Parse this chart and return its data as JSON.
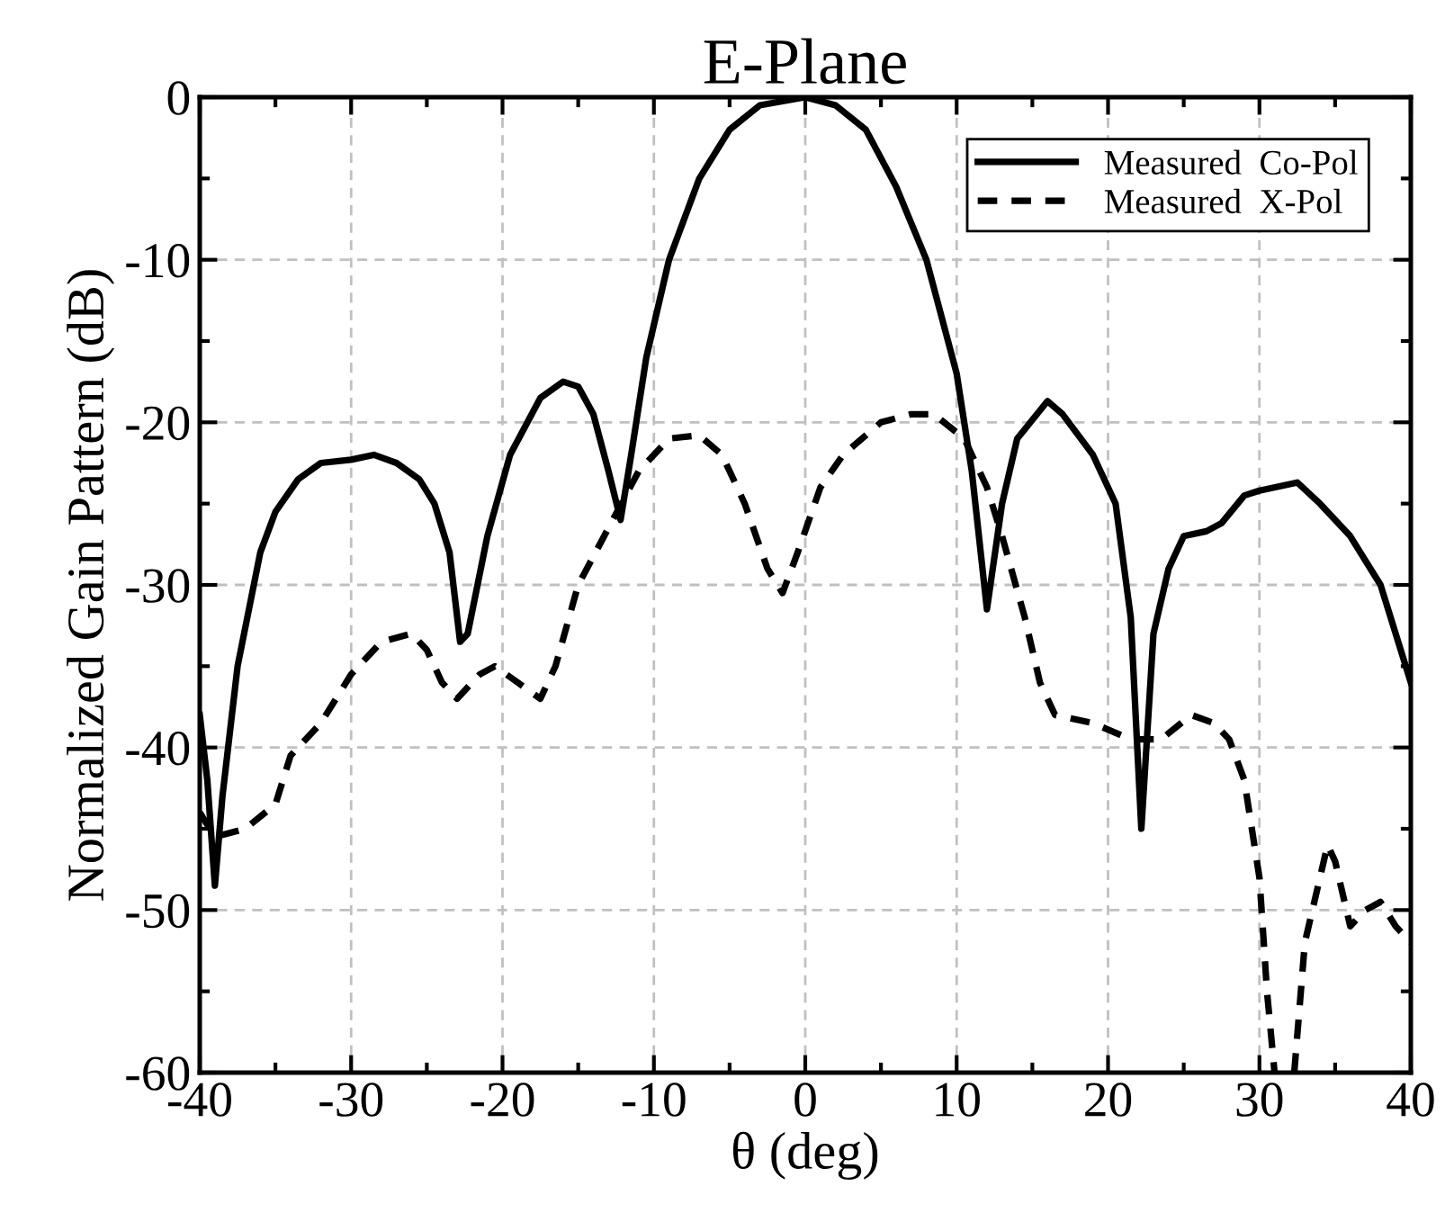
{
  "chart_data": {
    "type": "line",
    "title": "E-Plane",
    "xlabel": "θ (deg)",
    "ylabel": "Normalized Gain Pattern (dB)",
    "xlim": [
      -40,
      40
    ],
    "ylim": [
      -60,
      0
    ],
    "xticks": [
      -40,
      {
        "value": -35,
        "label": null
      },
      -30,
      {
        "value": -25,
        "label": null
      },
      -20,
      {
        "value": -15,
        "label": null
      },
      -10,
      {
        "value": -5,
        "label": null
      },
      0,
      {
        "value": 5,
        "label": null
      },
      10,
      {
        "value": 15,
        "label": null
      },
      20,
      {
        "value": 25,
        "label": null
      },
      30,
      {
        "value": 35,
        "label": null
      },
      40
    ],
    "yticks": [
      -60,
      {
        "value": -55,
        "label": null
      },
      -50,
      {
        "value": -45,
        "label": null
      },
      -40,
      {
        "value": -35,
        "label": null
      },
      -30,
      {
        "value": -25,
        "label": null
      },
      -20,
      {
        "value": -15,
        "label": null
      },
      -10,
      {
        "value": -5,
        "label": null
      },
      0
    ],
    "grid": true,
    "legend": "top right",
    "series": [
      {
        "name": "Measured  Co-Pol",
        "color": "#000000",
        "line_style": "solid",
        "x": [
          -40,
          -39.5,
          -39,
          -38.5,
          -37.5,
          -36,
          -35,
          -33.5,
          -32,
          -30,
          -28.5,
          -27,
          -25.5,
          -24.5,
          -23.5,
          -22.8,
          -22.3,
          -21,
          -19.5,
          -17.5,
          -16,
          -15,
          -14,
          -13,
          -12.2,
          -11.5,
          -10.5,
          -9,
          -7,
          -5,
          -3,
          0,
          2,
          4,
          6,
          8,
          10,
          11,
          12,
          13,
          14,
          16,
          17,
          19,
          20.5,
          21.5,
          22.2,
          23,
          24,
          25,
          26.5,
          27.5,
          29,
          30,
          32.5,
          34,
          36,
          38,
          40
        ],
        "values": [
          -38,
          -42,
          -48.5,
          -43,
          -35,
          -28,
          -25.5,
          -23.5,
          -22.5,
          -22.3,
          -22,
          -22.5,
          -23.5,
          -25,
          -28,
          -33.5,
          -33,
          -27,
          -22,
          -18.5,
          -17.5,
          -17.8,
          -19.5,
          -23,
          -26,
          -22,
          -16,
          -10,
          -5,
          -2,
          -0.5,
          0,
          -0.5,
          -2,
          -5.5,
          -10,
          -17,
          -23,
          -31.5,
          -25,
          -21,
          -18.7,
          -19.5,
          -22,
          -25,
          -32,
          -45,
          -33,
          -29,
          -27,
          -26.7,
          -26.2,
          -24.5,
          -24.2,
          -23.7,
          -25,
          -27,
          -30,
          -36
        ]
      },
      {
        "name": "Measured  X-Pol",
        "color": "#000000",
        "line_style": "dashed",
        "x": [
          -40,
          -39,
          -37,
          -35,
          -34,
          -32,
          -30,
          -28,
          -26,
          -25,
          -24,
          -23,
          -21.5,
          -20.5,
          -19,
          -17.5,
          -16.5,
          -15,
          -13,
          -11,
          -9,
          -7,
          -5.5,
          -4,
          -2.5,
          -1.5,
          -0.5,
          1,
          2.5,
          5,
          7,
          8.5,
          10.5,
          12,
          13,
          14.5,
          15.5,
          16.5,
          19,
          21.5,
          23.5,
          25.5,
          27,
          28,
          29,
          30,
          30.5,
          31,
          31.6,
          32.3,
          33,
          34.5,
          35,
          36,
          37,
          38,
          39,
          40
        ],
        "values": [
          -44,
          -45.5,
          -45,
          -43.5,
          -40.5,
          -38.5,
          -35.5,
          -33.5,
          -33,
          -34,
          -36,
          -37,
          -35.5,
          -35,
          -36,
          -37,
          -35,
          -30,
          -26.5,
          -23,
          -21,
          -20.8,
          -22,
          -25,
          -29,
          -30.5,
          -28,
          -24,
          -22,
          -20,
          -19.5,
          -19.5,
          -21,
          -24,
          -27,
          -32,
          -36,
          -38,
          -38.5,
          -39.5,
          -39.5,
          -38,
          -38.5,
          -39.5,
          -42,
          -48,
          -55,
          -60,
          null,
          -60,
          -52,
          -46,
          -47,
          -51,
          -50,
          -49.5,
          -51,
          -52
        ]
      }
    ]
  }
}
